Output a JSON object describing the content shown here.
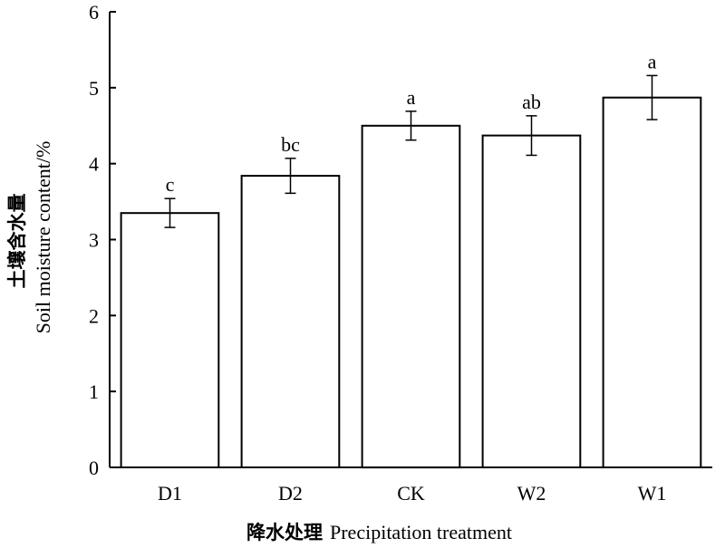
{
  "chart_data": {
    "type": "bar",
    "categories": [
      "D1",
      "D2",
      "CK",
      "W2",
      "W1"
    ],
    "values": [
      3.35,
      3.84,
      4.5,
      4.37,
      4.87
    ],
    "errors": [
      0.19,
      0.23,
      0.19,
      0.26,
      0.29
    ],
    "significance": [
      "c",
      "bc",
      "a",
      "ab",
      "a"
    ],
    "ylim": [
      0,
      6
    ],
    "yticks": [
      0,
      1,
      2,
      3,
      4,
      5,
      6
    ],
    "ylabel_cn": "土壤含水量",
    "ylabel": "Soil moisture content/%",
    "xlabel_cn": "降水处理",
    "xlabel": "Precipitation treatment",
    "grid": false,
    "bar_fill": "#ffffff",
    "bar_stroke": "#000000"
  }
}
